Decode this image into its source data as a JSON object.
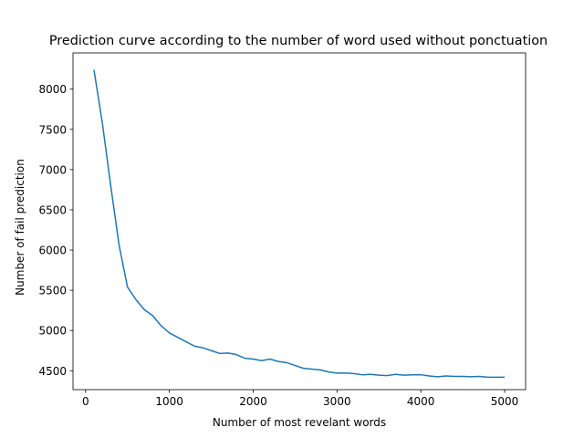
{
  "chart_data": {
    "type": "line",
    "title": "Prediction curve according to the number of word used without ponctuation",
    "xlabel": "Number of most revelant words",
    "ylabel": "Number of fail prediction",
    "xlim": [
      -150,
      5250
    ],
    "ylim": [
      4265,
      8450
    ],
    "xticks": [
      0,
      1000,
      2000,
      3000,
      4000,
      5000
    ],
    "yticks": [
      4500,
      5000,
      5500,
      6000,
      6500,
      7000,
      7500,
      8000
    ],
    "grid": false,
    "line_color": "#1f77b4",
    "series": [
      {
        "x": [
          100,
          200,
          300,
          400,
          500,
          600,
          700,
          800,
          900,
          1000,
          1100,
          1200,
          1300,
          1400,
          1500,
          1600,
          1700,
          1800,
          1900,
          2000,
          2100,
          2200,
          2300,
          2400,
          2500,
          2600,
          2700,
          2800,
          2900,
          3000,
          3100,
          3200,
          3300,
          3400,
          3500,
          3600,
          3700,
          3800,
          3900,
          4000,
          4100,
          4200,
          4300,
          4400,
          4500,
          4600,
          4700,
          4800,
          4900,
          5000
        ],
        "values": [
          8240,
          7580,
          6800,
          6060,
          5540,
          5385,
          5260,
          5185,
          5060,
          4970,
          4915,
          4860,
          4805,
          4785,
          4750,
          4715,
          4720,
          4700,
          4655,
          4645,
          4625,
          4645,
          4615,
          4600,
          4565,
          4530,
          4520,
          4510,
          4485,
          4470,
          4470,
          4465,
          4450,
          4455,
          4445,
          4440,
          4455,
          4445,
          4450,
          4450,
          4435,
          4425,
          4435,
          4430,
          4430,
          4425,
          4430,
          4420,
          4420,
          4420
        ]
      }
    ]
  }
}
